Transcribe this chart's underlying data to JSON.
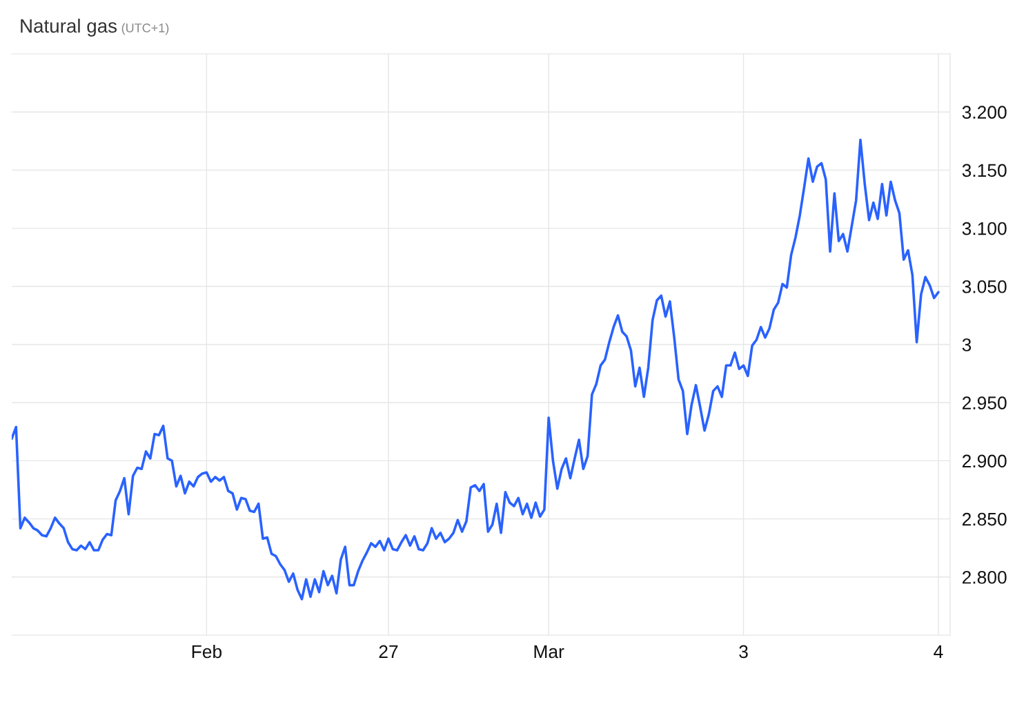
{
  "chart_data": {
    "type": "line",
    "title": "Natural gas",
    "subtitle": "(UTC+1)",
    "categories": [
      null,
      null,
      null,
      null,
      null,
      null,
      null,
      null,
      null,
      null,
      null,
      null,
      null,
      null,
      null,
      null,
      null,
      null,
      null,
      null,
      null,
      null,
      null,
      null,
      null,
      null,
      null,
      null,
      null,
      null,
      null,
      null,
      null,
      null,
      null,
      null,
      null,
      null,
      null,
      null,
      null,
      null,
      null,
      null,
      null,
      "Feb",
      null,
      null,
      null,
      null,
      null,
      null,
      null,
      null,
      null,
      null,
      null,
      null,
      null,
      null,
      null,
      null,
      null,
      null,
      null,
      null,
      null,
      null,
      null,
      null,
      null,
      null,
      null,
      null,
      null,
      null,
      null,
      null,
      null,
      null,
      null,
      null,
      null,
      null,
      null,
      null,
      null,
      "27",
      null,
      null,
      null,
      null,
      null,
      null,
      null,
      null,
      null,
      null,
      null,
      null,
      null,
      null,
      null,
      null,
      null,
      null,
      null,
      null,
      null,
      null,
      null,
      null,
      null,
      null,
      null,
      null,
      null,
      null,
      null,
      null,
      null,
      null,
      null,
      null,
      "Mar",
      null,
      null,
      null,
      null,
      null,
      null,
      null,
      null,
      null,
      null,
      null,
      null,
      null,
      null,
      null,
      null,
      null,
      null,
      null,
      null,
      null,
      null,
      null,
      null,
      null,
      null,
      null,
      null,
      null,
      null,
      null,
      null,
      null,
      null,
      null,
      null,
      null,
      null,
      null,
      null,
      null,
      null,
      null,
      null,
      "3",
      null,
      null,
      null,
      null,
      null,
      null,
      null,
      null,
      null,
      null,
      null,
      null,
      null,
      null,
      null,
      null,
      null,
      null,
      null,
      null,
      null,
      null,
      null,
      null,
      null,
      null,
      null,
      null,
      null,
      null,
      null,
      null,
      null,
      null,
      null,
      null,
      null,
      null,
      null,
      null,
      null,
      null,
      null,
      null,
      "4"
    ],
    "ylim": [
      2.75,
      3.25
    ],
    "yticks": [
      {
        "value": 2.8,
        "label": "2.800"
      },
      {
        "value": 2.85,
        "label": "2.850"
      },
      {
        "value": 2.9,
        "label": "2.900"
      },
      {
        "value": 2.95,
        "label": "2.950"
      },
      3,
      {
        "value": 3.05,
        "label": "3.050"
      },
      {
        "value": 3.1,
        "label": "3.100"
      },
      {
        "value": 3.15,
        "label": "3.150"
      },
      {
        "value": 3.2,
        "label": "3.200"
      }
    ],
    "grid": true,
    "legend": false,
    "marker": "none",
    "line_style": "solid",
    "series": [
      {
        "color": "#2962ff",
        "values": [
          2.919,
          2.929,
          2.842,
          2.851,
          2.847,
          2.842,
          2.84,
          2.836,
          2.835,
          2.842,
          2.851,
          2.846,
          2.842,
          2.83,
          2.824,
          2.823,
          2.827,
          2.824,
          2.83,
          2.823,
          2.823,
          2.832,
          2.837,
          2.836,
          2.866,
          2.874,
          2.885,
          2.854,
          2.887,
          2.894,
          2.893,
          2.908,
          2.902,
          2.923,
          2.922,
          2.93,
          2.902,
          2.9,
          2.878,
          2.887,
          2.872,
          2.882,
          2.878,
          2.886,
          2.889,
          2.89,
          2.882,
          2.886,
          2.883,
          2.886,
          2.874,
          2.872,
          2.858,
          2.868,
          2.867,
          2.857,
          2.856,
          2.863,
          2.833,
          2.834,
          2.82,
          2.818,
          2.811,
          2.806,
          2.796,
          2.803,
          2.789,
          2.781,
          2.798,
          2.783,
          2.798,
          2.787,
          2.805,
          2.793,
          2.801,
          2.786,
          2.815,
          2.826,
          2.793,
          2.793,
          2.805,
          2.814,
          2.821,
          2.829,
          2.826,
          2.831,
          2.823,
          2.833,
          2.824,
          2.823,
          2.83,
          2.836,
          2.827,
          2.835,
          2.824,
          2.823,
          2.829,
          2.842,
          2.833,
          2.838,
          2.83,
          2.833,
          2.838,
          2.849,
          2.839,
          2.848,
          2.877,
          2.879,
          2.874,
          2.88,
          2.839,
          2.845,
          2.863,
          2.838,
          2.873,
          2.864,
          2.861,
          2.868,
          2.854,
          2.863,
          2.851,
          2.864,
          2.852,
          2.858,
          2.937,
          2.9,
          2.876,
          2.893,
          2.902,
          2.885,
          2.902,
          2.918,
          2.893,
          2.904,
          2.957,
          2.966,
          2.982,
          2.987,
          3.002,
          3.015,
          3.025,
          3.011,
          3.007,
          2.995,
          2.964,
          2.98,
          2.955,
          2.98,
          3.021,
          3.038,
          3.042,
          3.024,
          3.037,
          3.006,
          2.97,
          2.96,
          2.923,
          2.948,
          2.965,
          2.946,
          2.926,
          2.94,
          2.96,
          2.964,
          2.955,
          2.982,
          2.982,
          2.993,
          2.979,
          2.982,
          2.973,
          2.999,
          3.004,
          3.015,
          3.006,
          3.014,
          3.03,
          3.036,
          3.052,
          3.049,
          3.077,
          3.092,
          3.111,
          3.135,
          3.16,
          3.14,
          3.153,
          3.156,
          3.142,
          3.08,
          3.13,
          3.089,
          3.095,
          3.08,
          3.102,
          3.124,
          3.176,
          3.138,
          3.107,
          3.122,
          3.108,
          3.138,
          3.111,
          3.14,
          3.124,
          3.113,
          3.073,
          3.081,
          3.06,
          3.002,
          3.043,
          3.058,
          3.051,
          3.04,
          3.045
        ]
      }
    ]
  }
}
